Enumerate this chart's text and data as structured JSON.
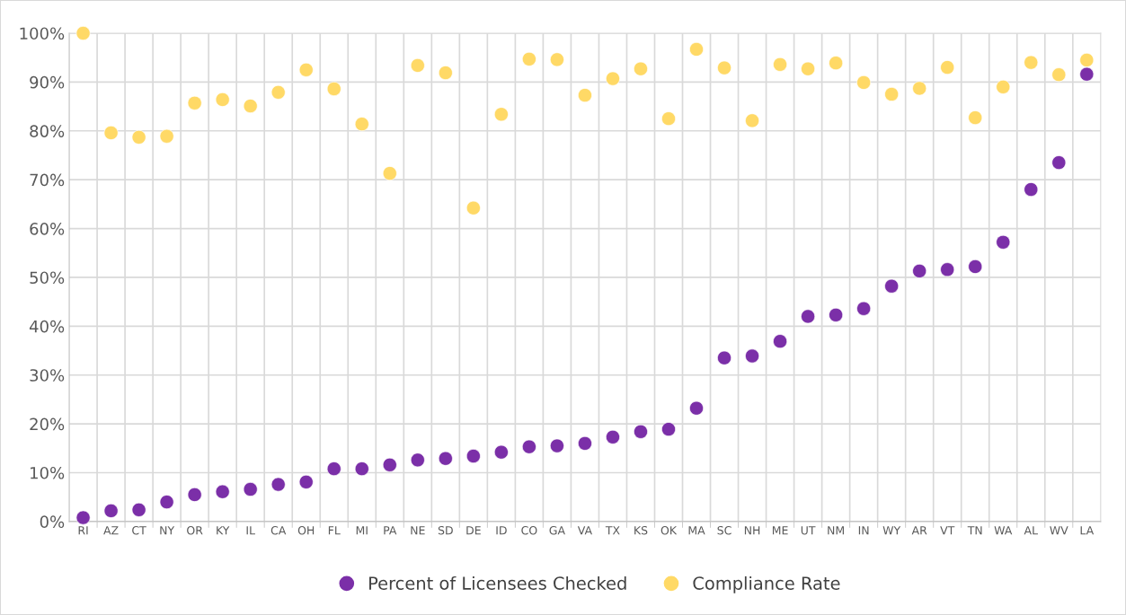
{
  "chart_data": {
    "type": "scatter",
    "categories": [
      "RI",
      "AZ",
      "CT",
      "NY",
      "OR",
      "KY",
      "IL",
      "CA",
      "OH",
      "FL",
      "MI",
      "PA",
      "NE",
      "SD",
      "DE",
      "ID",
      "CO",
      "GA",
      "VA",
      "TX",
      "KS",
      "OK",
      "MA",
      "SC",
      "NH",
      "ME",
      "UT",
      "NM",
      "IN",
      "WY",
      "AR",
      "VT",
      "TN",
      "WA",
      "AL",
      "WV",
      "LA"
    ],
    "series": [
      {
        "name": "Percent of Licensees Checked",
        "color": "#7b2fa8",
        "values": [
          0.8,
          2.2,
          2.4,
          4.0,
          5.5,
          6.1,
          6.6,
          7.6,
          8.1,
          10.8,
          10.8,
          11.6,
          12.6,
          12.9,
          13.4,
          14.2,
          15.3,
          15.5,
          16.0,
          17.3,
          18.4,
          18.9,
          23.2,
          33.5,
          33.9,
          36.9,
          42.0,
          42.3,
          43.6,
          48.2,
          51.3,
          51.6,
          52.2,
          57.2,
          68.0,
          73.5,
          91.6
        ]
      },
      {
        "name": "Compliance Rate",
        "color": "#ffd966",
        "values": [
          100,
          79.6,
          78.7,
          78.9,
          85.7,
          86.4,
          85.1,
          87.9,
          92.5,
          88.6,
          81.4,
          71.3,
          93.4,
          91.9,
          64.2,
          83.4,
          94.7,
          94.6,
          87.3,
          90.7,
          92.7,
          82.5,
          96.7,
          92.9,
          82.1,
          93.6,
          92.7,
          93.9,
          89.9,
          87.5,
          88.7,
          93.0,
          82.7,
          89.0,
          94.0,
          91.5,
          94.5
        ]
      }
    ],
    "ylim": [
      0,
      100
    ],
    "yticks": [
      {
        "value": 0,
        "label": "0%"
      },
      {
        "value": 10,
        "label": "10%"
      },
      {
        "value": 20,
        "label": "20%"
      },
      {
        "value": 30,
        "label": "30%"
      },
      {
        "value": 40,
        "label": "40%"
      },
      {
        "value": 50,
        "label": "50%"
      },
      {
        "value": 60,
        "label": "60%"
      },
      {
        "value": 70,
        "label": "70%"
      },
      {
        "value": 80,
        "label": "80%"
      },
      {
        "value": 90,
        "label": "90%"
      },
      {
        "value": 100,
        "label": "100%"
      }
    ],
    "grid": true,
    "legend": "bottom",
    "marker": "circle"
  }
}
